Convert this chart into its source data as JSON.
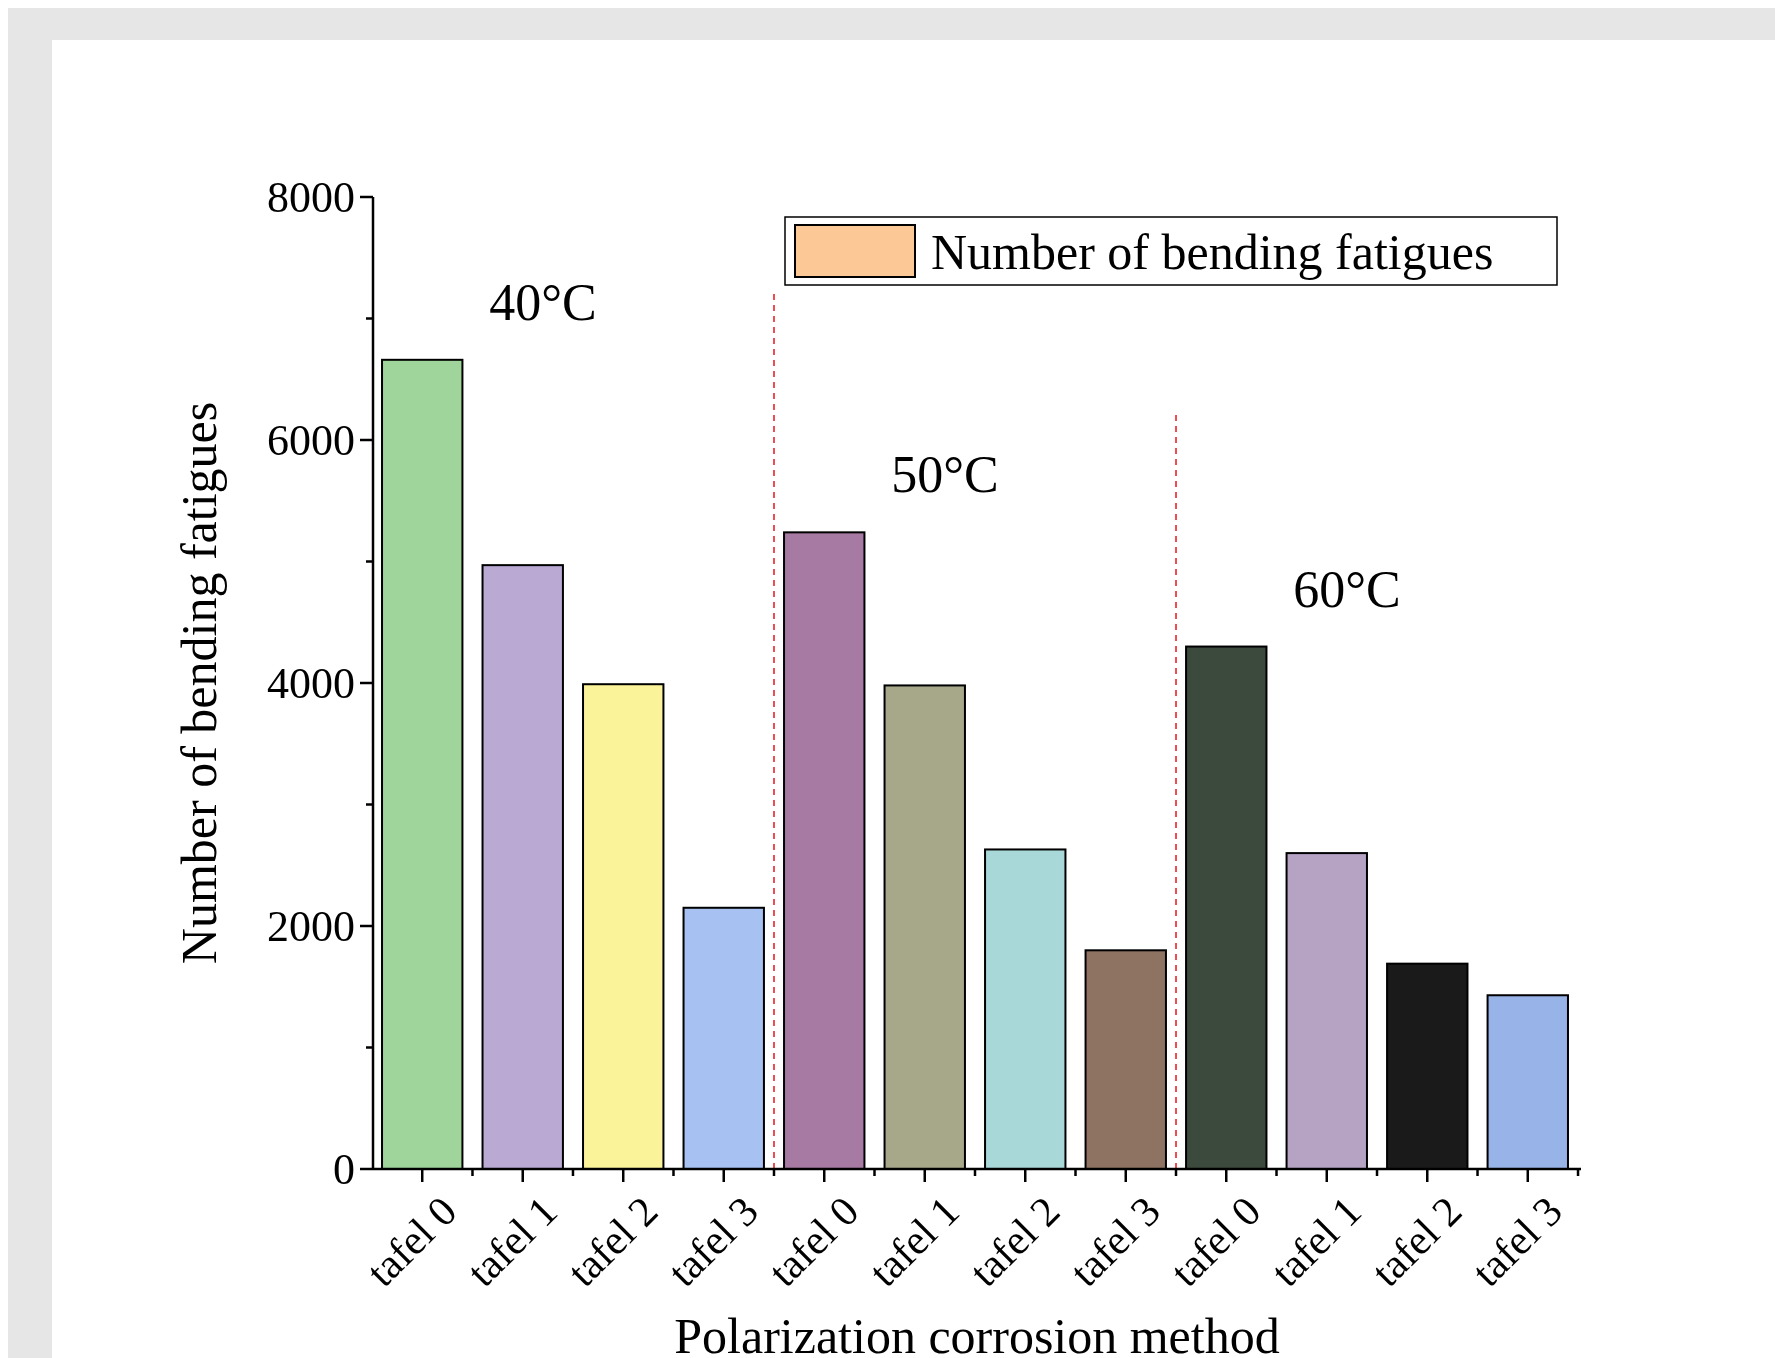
{
  "chart_data": {
    "type": "bar",
    "xlabel": "Polarization corrosion method",
    "ylabel": "Number of bending fatigues",
    "categories": [
      "tafel 0",
      "tafel 1",
      "tafel 2",
      "tafel 3",
      "tafel 0",
      "tafel 1",
      "tafel 2",
      "tafel 3",
      "tafel 0",
      "tafel 1",
      "tafel 2",
      "tafel 3"
    ],
    "series": [
      {
        "name": "Number of bending fatigues",
        "color": "#fbc896",
        "values": [
          6660,
          4970,
          3990,
          2150,
          5240,
          3980,
          2630,
          1800,
          4300,
          2600,
          1690,
          1430
        ],
        "colors": [
          "#9fd49b",
          "#b9a9d3",
          "#fbf39a",
          "#a6c1f2",
          "#a67aa2",
          "#a7a88a",
          "#a9d8d8",
          "#8e7262",
          "#3c4a3e",
          "#b6a3c4",
          "#1a1a1a",
          "#98b3e8"
        ]
      }
    ],
    "ylim": [
      0,
      8000
    ],
    "yticks": [
      0,
      {
        "value": 1000,
        "label": null
      },
      2000,
      {
        "value": 3000,
        "label": null
      },
      4000,
      {
        "value": 5000,
        "label": null
      },
      6000,
      {
        "value": 7000,
        "label": null
      },
      8000
    ],
    "annotations": [
      "40°C",
      "50°C",
      "60°C"
    ],
    "legend": "top right",
    "grid": false
  }
}
